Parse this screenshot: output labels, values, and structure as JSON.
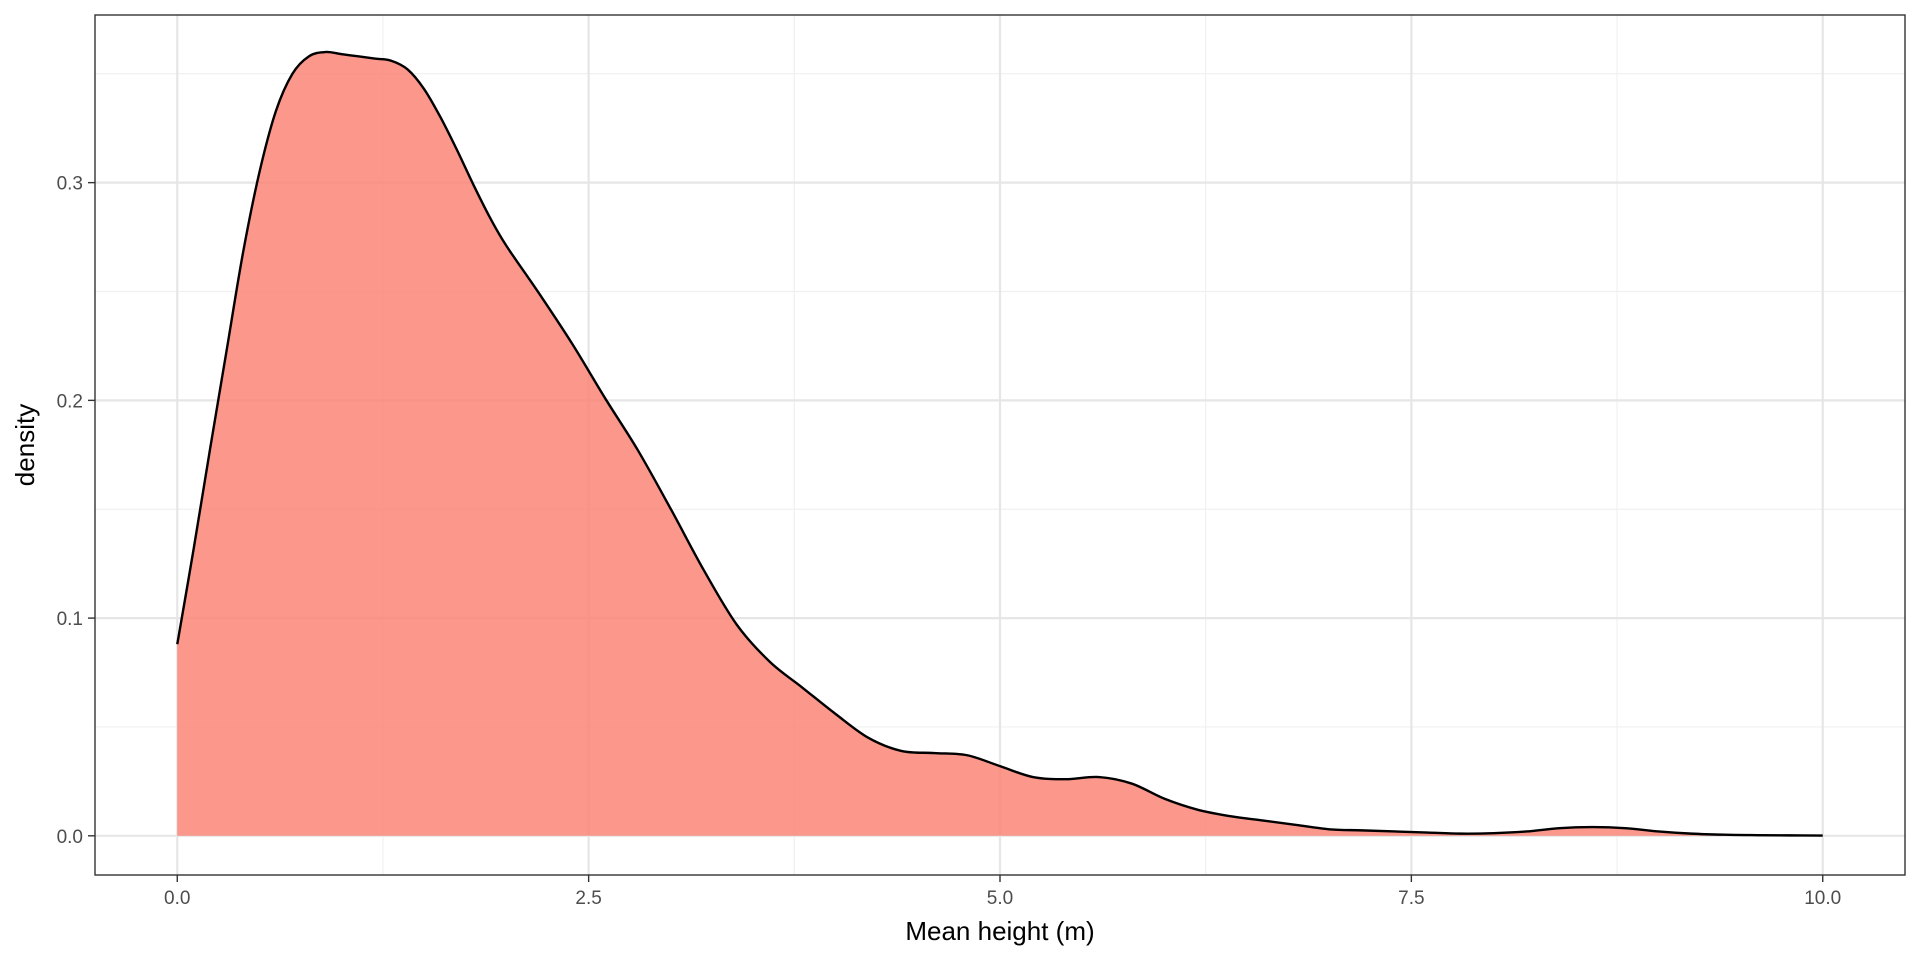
{
  "chart_data": {
    "type": "area",
    "xlabel": "Mean height (m)",
    "ylabel": "density",
    "xlim": [
      -0.5,
      10.5
    ],
    "ylim": [
      -0.018,
      0.377
    ],
    "x_ticks": [
      0.0,
      2.5,
      5.0,
      7.5,
      10.0
    ],
    "x_tick_labels": [
      "0.0",
      "2.5",
      "5.0",
      "7.5",
      "10.0"
    ],
    "y_ticks": [
      0.0,
      0.1,
      0.2,
      0.3
    ],
    "y_tick_labels": [
      "0.0",
      "0.1",
      "0.2",
      "0.3"
    ],
    "grid": true,
    "series": [
      {
        "fill_color": "#fa8072",
        "line_color": "#000000",
        "x": [
          0.0,
          0.1,
          0.2,
          0.3,
          0.4,
          0.5,
          0.6,
          0.7,
          0.8,
          0.9,
          1.0,
          1.1,
          1.2,
          1.3,
          1.4,
          1.5,
          1.6,
          1.7,
          1.8,
          1.9,
          2.0,
          2.2,
          2.4,
          2.6,
          2.8,
          3.0,
          3.2,
          3.4,
          3.6,
          3.8,
          4.0,
          4.2,
          4.4,
          4.6,
          4.8,
          5.0,
          5.2,
          5.4,
          5.6,
          5.8,
          6.0,
          6.2,
          6.4,
          6.6,
          6.8,
          7.0,
          7.2,
          7.4,
          7.6,
          7.8,
          8.0,
          8.2,
          8.4,
          8.6,
          8.8,
          9.0,
          9.2,
          9.4,
          9.6,
          9.8,
          10.0
        ],
        "y": [
          0.088,
          0.132,
          0.178,
          0.223,
          0.268,
          0.305,
          0.333,
          0.35,
          0.358,
          0.36,
          0.359,
          0.358,
          0.357,
          0.356,
          0.352,
          0.343,
          0.33,
          0.315,
          0.299,
          0.284,
          0.271,
          0.249,
          0.226,
          0.201,
          0.177,
          0.15,
          0.122,
          0.097,
          0.08,
          0.068,
          0.056,
          0.045,
          0.039,
          0.038,
          0.037,
          0.032,
          0.027,
          0.026,
          0.027,
          0.024,
          0.017,
          0.012,
          0.009,
          0.007,
          0.005,
          0.003,
          0.0025,
          0.002,
          0.0015,
          0.001,
          0.0012,
          0.002,
          0.0035,
          0.004,
          0.0035,
          0.002,
          0.001,
          0.0005,
          0.0003,
          0.0002,
          0.0001
        ]
      }
    ]
  }
}
